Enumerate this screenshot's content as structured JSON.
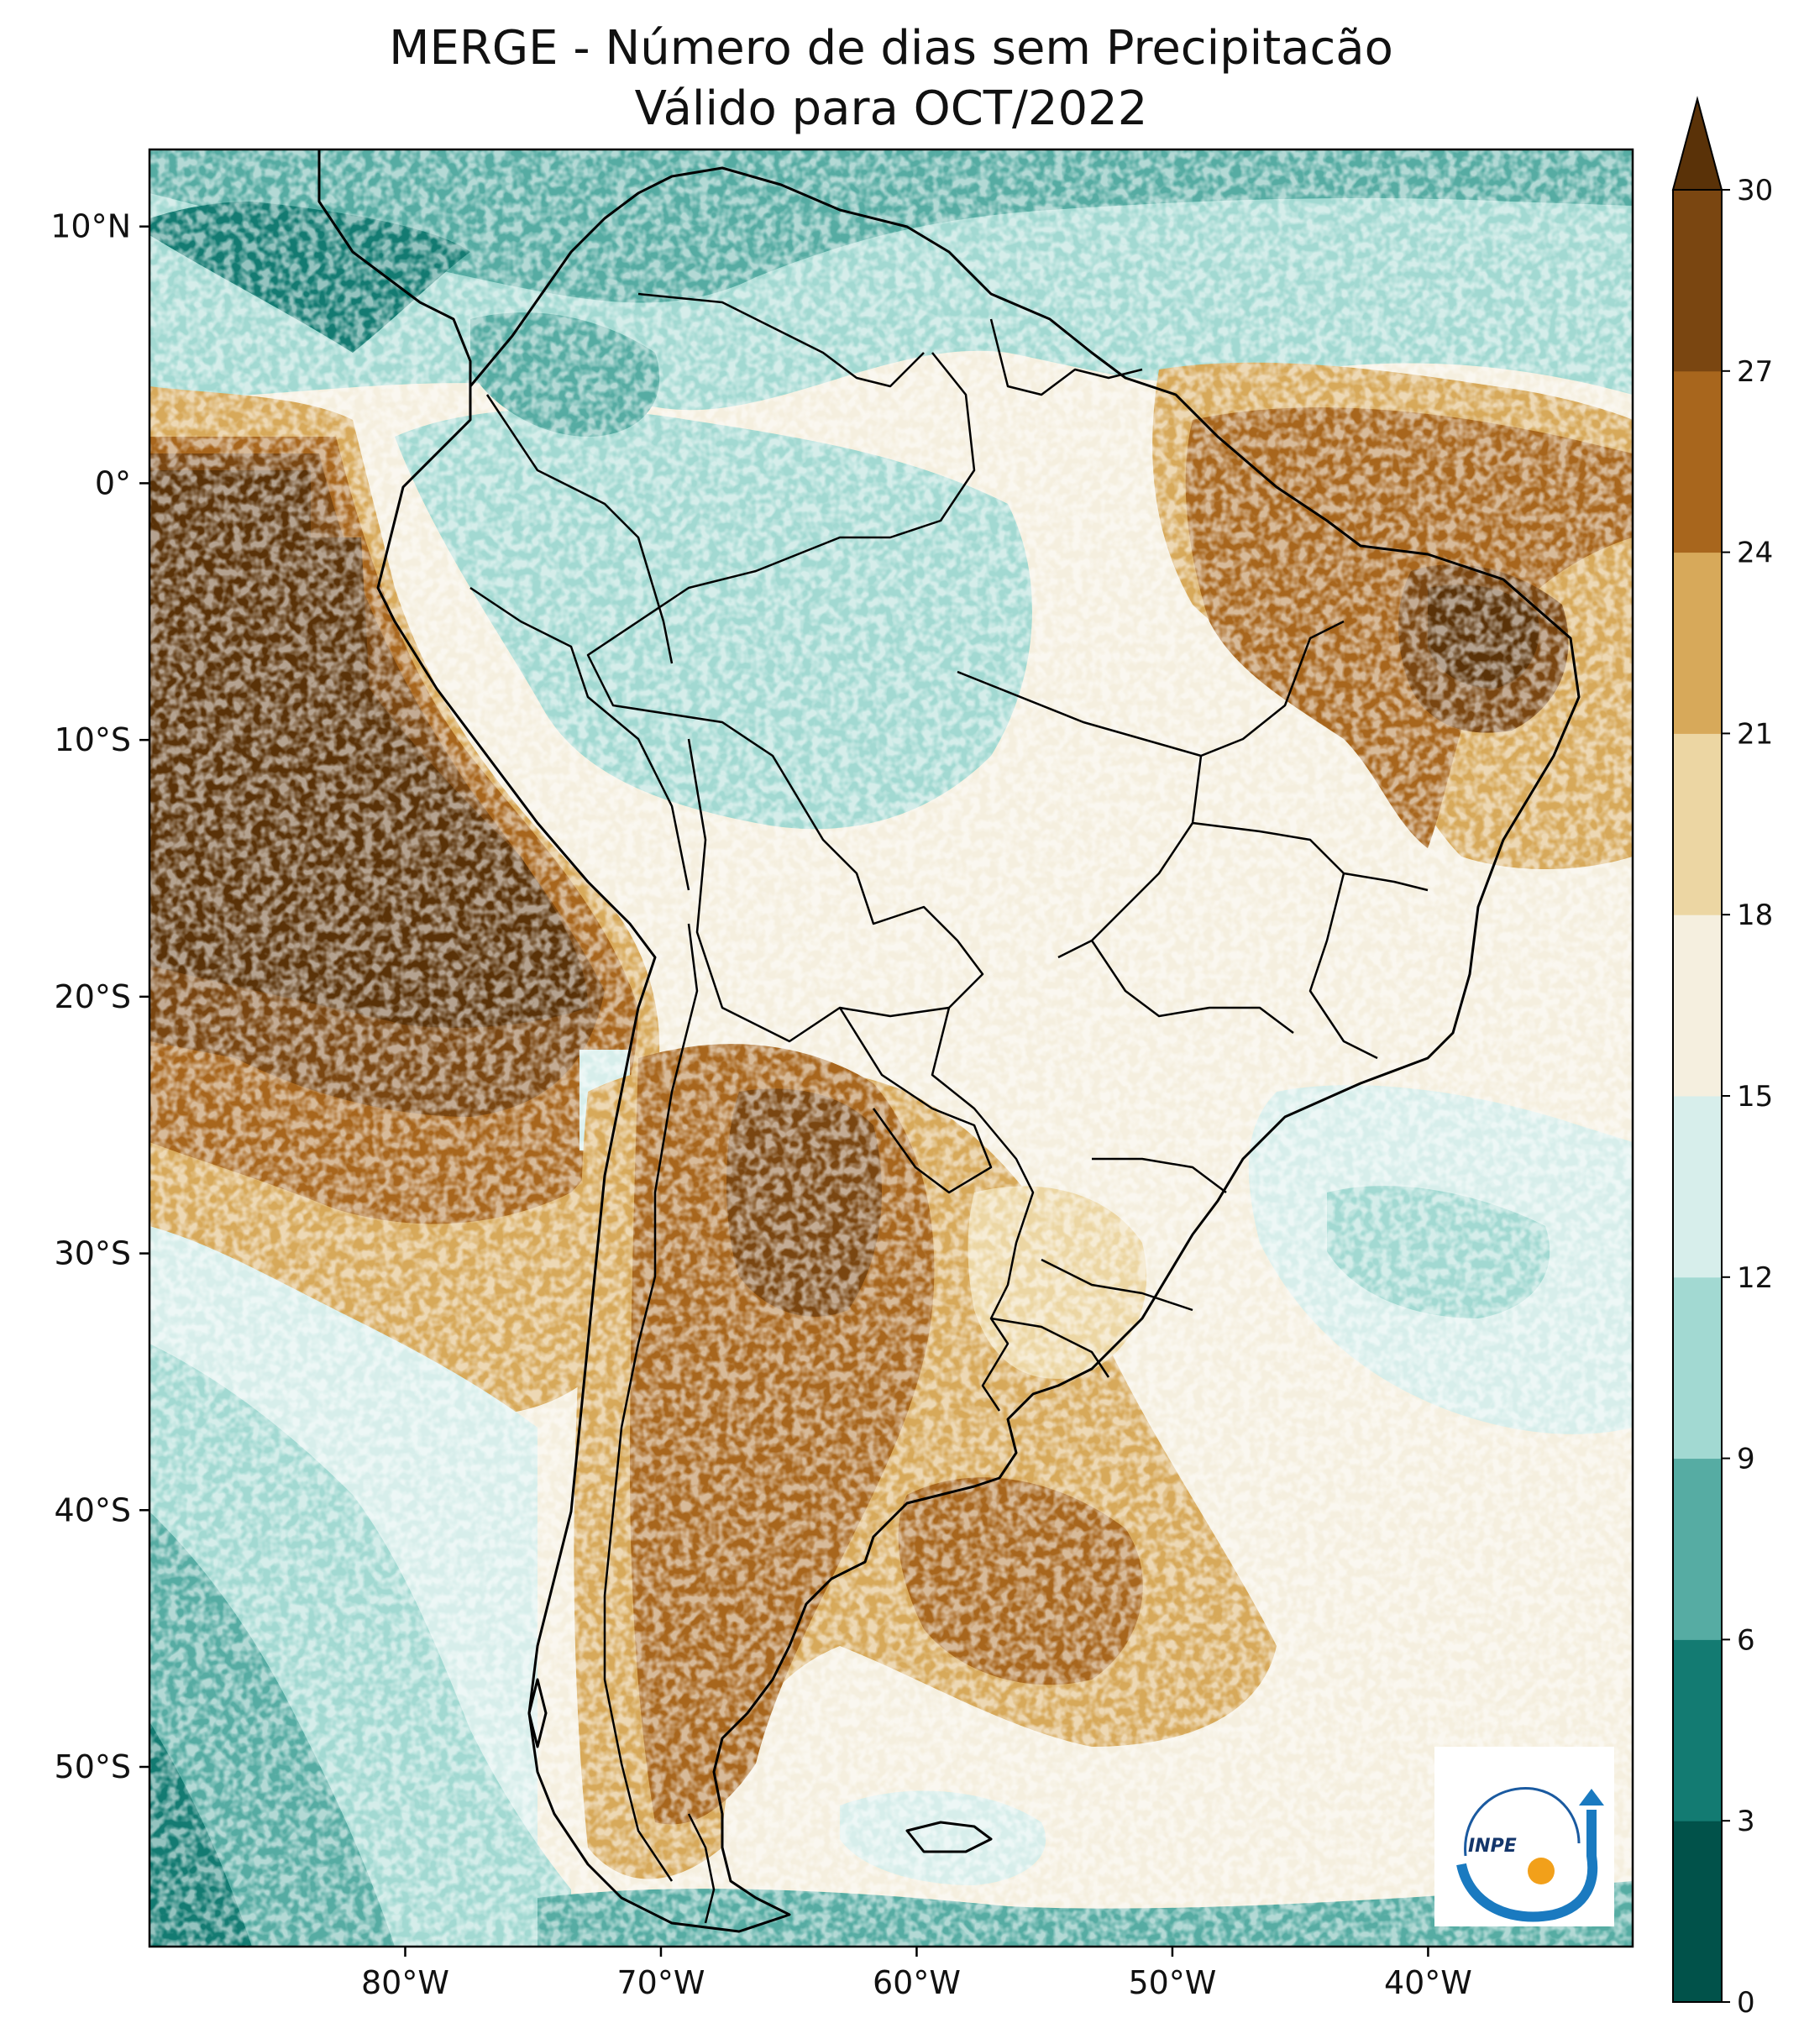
{
  "title": {
    "line1": "MERGE - Número de dias sem Precipitacão",
    "line2": "Válido para OCT/2022"
  },
  "map": {
    "projection": "PlateCarree",
    "lon_range": [
      -90,
      -32
    ],
    "lat_range": [
      -57,
      13
    ],
    "lat_ticks": [
      {
        "value": 10,
        "label": "10°N"
      },
      {
        "value": 0,
        "label": "0°"
      },
      {
        "value": -10,
        "label": "10°S"
      },
      {
        "value": -20,
        "label": "20°S"
      },
      {
        "value": -30,
        "label": "30°S"
      },
      {
        "value": -40,
        "label": "40°S"
      },
      {
        "value": -50,
        "label": "50°S"
      }
    ],
    "lon_ticks": [
      {
        "value": -80,
        "label": "80°W"
      },
      {
        "value": -70,
        "label": "70°W"
      },
      {
        "value": -60,
        "label": "60°W"
      },
      {
        "value": -50,
        "label": "50°W"
      },
      {
        "value": -40,
        "label": "40°W"
      }
    ],
    "boundaries": "country and Brazilian state borders",
    "logo": "INPE"
  },
  "colorbar": {
    "extend": "max",
    "ticks": [
      "0",
      "3",
      "6",
      "9",
      "12",
      "15",
      "18",
      "21",
      "24",
      "27",
      "30"
    ],
    "colors": [
      "#01524a",
      "#137b72",
      "#56aca3",
      "#a2d9d2",
      "#d7eeeb",
      "#f5efdf",
      "#ecd6a3",
      "#d7a95a",
      "#a8661d",
      "#7a4611",
      "#5a3208"
    ]
  }
}
